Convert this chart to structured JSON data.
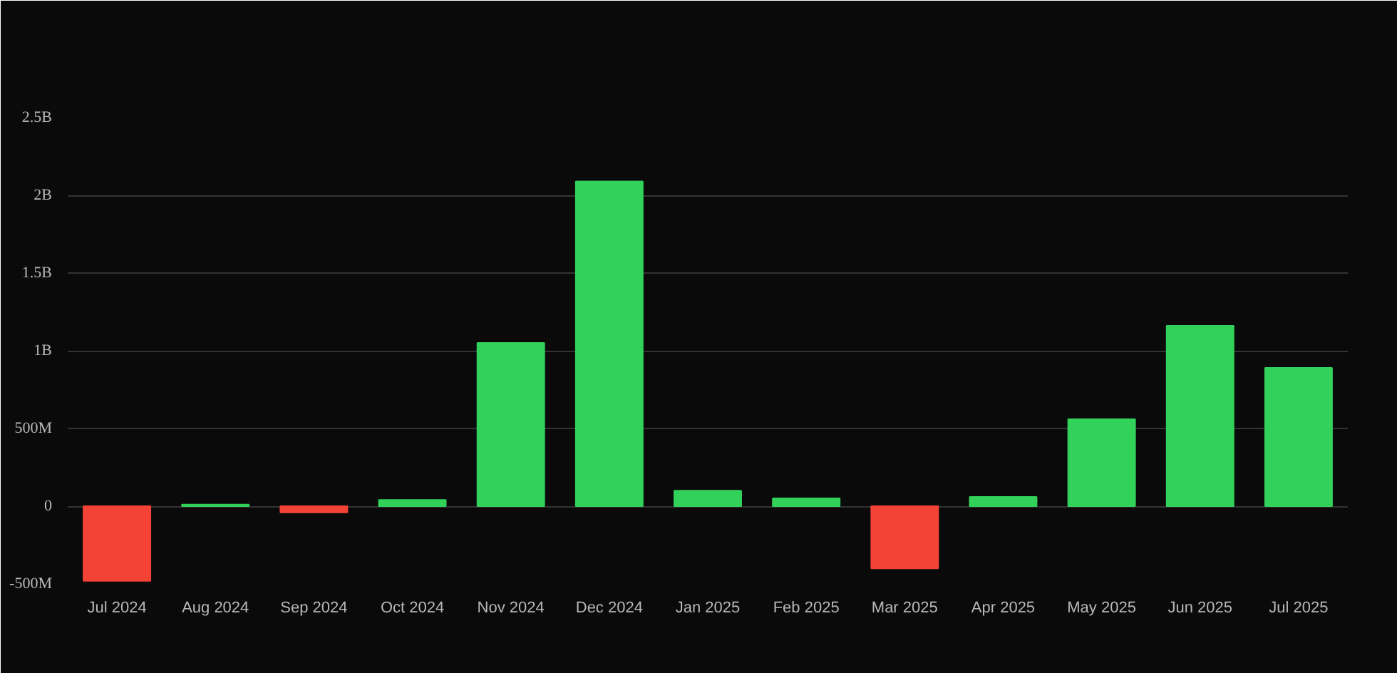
{
  "chart_data": {
    "type": "bar",
    "categories": [
      "Jul 2024",
      "Aug 2024",
      "Sep 2024",
      "Oct 2024",
      "Nov 2024",
      "Dec 2024",
      "Jan 2025",
      "Feb 2025",
      "Mar 2025",
      "Apr 2025",
      "May 2025",
      "Jun 2025",
      "Jul 2025"
    ],
    "values": [
      -480000000,
      10000000,
      -40000000,
      40000000,
      1050000000,
      2090000000,
      100000000,
      50000000,
      -400000000,
      60000000,
      560000000,
      1160000000,
      890000000
    ],
    "colors": [
      "#f44336",
      "#32d25a",
      "#f44336",
      "#32d25a",
      "#32d25a",
      "#32d25a",
      "#32d25a",
      "#32d25a",
      "#f44336",
      "#32d25a",
      "#32d25a",
      "#32d25a",
      "#32d25a"
    ],
    "ylim": [
      -500000000,
      2500000000
    ],
    "yticks": [
      {
        "value": -500000000,
        "label": "-500M"
      },
      0,
      {
        "value": 500000000,
        "label": "500M"
      },
      {
        "value": 1000000000,
        "label": "1B"
      },
      {
        "value": 1500000000,
        "label": "1.5B"
      },
      {
        "value": 2000000000,
        "label": "2B"
      },
      {
        "value": 2500000000,
        "label": "2.5B"
      }
    ],
    "grid": "y"
  }
}
